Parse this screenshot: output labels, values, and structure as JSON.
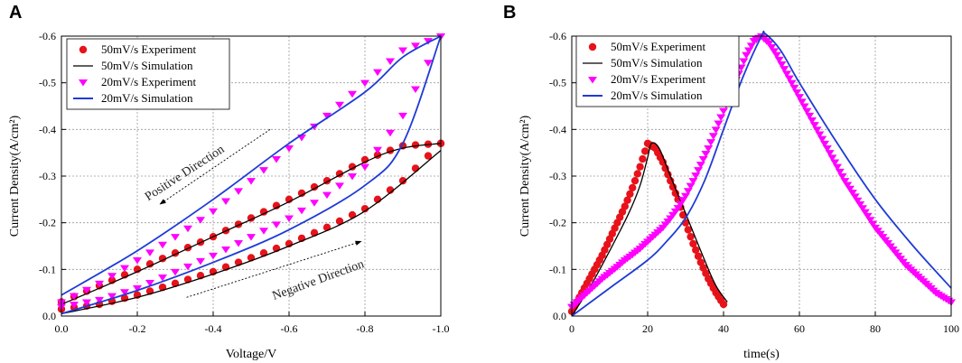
{
  "chart_data": [
    {
      "panel": "A",
      "type": "line",
      "xlabel": "Voltage/V",
      "ylabel": "Current Density(A/cm²)",
      "xlim": [
        0.0,
        -1.0
      ],
      "ylim": [
        0.0,
        -0.6
      ],
      "xticks": [
        0.0,
        -0.2,
        -0.4,
        -0.6,
        -0.8,
        -1.0
      ],
      "xtick_labels": [
        "0.0",
        "-0.2",
        "-0.4",
        "-0.6",
        "-0.8",
        "-1.0"
      ],
      "yticks": [
        0.0,
        -0.1,
        -0.2,
        -0.3,
        -0.4,
        -0.5,
        -0.6
      ],
      "ytick_labels": [
        "0.0",
        "-0.1",
        "-0.2",
        "-0.3",
        "-0.4",
        "-0.5",
        "-0.6"
      ],
      "grid": true,
      "legend_position": "top-left",
      "series": [
        {
          "name": "50mV/s Experiment",
          "style": "marker-circle",
          "color": "#e8121a",
          "x_upper": [
            0.0,
            -0.1,
            -0.2,
            -0.3,
            -0.4,
            -0.5,
            -0.6,
            -0.7,
            -0.8,
            -0.9,
            -1.0
          ],
          "y_upper": [
            -0.03,
            -0.065,
            -0.1,
            -0.135,
            -0.17,
            -0.21,
            -0.25,
            -0.29,
            -0.335,
            -0.365,
            -0.37
          ],
          "x_lower": [
            -1.0,
            -0.9,
            -0.8,
            -0.7,
            -0.6,
            -0.5,
            -0.4,
            -0.3,
            -0.2,
            -0.1,
            0.0
          ],
          "y_lower": [
            -0.37,
            -0.29,
            -0.23,
            -0.19,
            -0.155,
            -0.125,
            -0.095,
            -0.07,
            -0.045,
            -0.025,
            -0.015
          ]
        },
        {
          "name": "50mV/s Simulation",
          "style": "line",
          "color": "#000000",
          "x_upper": [
            0.0,
            -0.2,
            -0.4,
            -0.6,
            -0.8,
            -0.9,
            -1.0
          ],
          "y_upper": [
            -0.025,
            -0.095,
            -0.17,
            -0.245,
            -0.33,
            -0.36,
            -0.37
          ],
          "x_lower": [
            -1.0,
            -0.8,
            -0.6,
            -0.4,
            -0.2,
            0.0
          ],
          "y_lower": [
            -0.355,
            -0.225,
            -0.15,
            -0.09,
            -0.04,
            -0.005
          ]
        },
        {
          "name": "20mV/s Experiment",
          "style": "marker-triangle-down",
          "color": "#ff00ff",
          "x_upper": [
            0.0,
            -0.1,
            -0.2,
            -0.3,
            -0.4,
            -0.5,
            -0.6,
            -0.7,
            -0.8,
            -0.9,
            -1.0
          ],
          "y_upper": [
            -0.03,
            -0.07,
            -0.12,
            -0.17,
            -0.225,
            -0.29,
            -0.36,
            -0.43,
            -0.5,
            -0.57,
            -0.6
          ],
          "x_lower": [
            -1.0,
            -0.9,
            -0.8,
            -0.7,
            -0.6,
            -0.5,
            -0.4,
            -0.3,
            -0.2,
            -0.1,
            0.0
          ],
          "y_lower": [
            -0.6,
            -0.43,
            -0.32,
            -0.26,
            -0.21,
            -0.17,
            -0.13,
            -0.095,
            -0.06,
            -0.035,
            -0.02
          ]
        },
        {
          "name": "20mV/s Simulation",
          "style": "line",
          "color": "#1f3bd6",
          "x_upper": [
            0.0,
            -0.2,
            -0.4,
            -0.6,
            -0.8,
            -0.9,
            -1.0
          ],
          "y_upper": [
            -0.045,
            -0.14,
            -0.25,
            -0.37,
            -0.48,
            -0.555,
            -0.6
          ],
          "x_lower": [
            -1.0,
            -0.9,
            -0.8,
            -0.6,
            -0.4,
            -0.2,
            0.0
          ],
          "y_lower": [
            -0.6,
            -0.37,
            -0.28,
            -0.185,
            -0.115,
            -0.055,
            -0.005
          ]
        }
      ],
      "annotations": [
        {
          "text": "Positive Direction",
          "x": -0.33,
          "y": -0.3,
          "angle": -33
        },
        {
          "text": "Negative Direction",
          "x": -0.68,
          "y": -0.07,
          "angle": -20
        }
      ],
      "arrows": [
        {
          "from": [
            -0.55,
            -0.4
          ],
          "to": [
            -0.26,
            -0.24
          ]
        },
        {
          "from": [
            -0.33,
            -0.04
          ],
          "to": [
            -0.79,
            -0.16
          ]
        }
      ]
    },
    {
      "panel": "B",
      "type": "line",
      "xlabel": "time(s)",
      "ylabel": "Current Density(A/cm²)",
      "xlim": [
        0,
        100
      ],
      "ylim": [
        0.0,
        -0.6
      ],
      "xticks": [
        0,
        20,
        40,
        60,
        80,
        100
      ],
      "xtick_labels": [
        "0",
        "20",
        "40",
        "60",
        "80",
        "100"
      ],
      "yticks": [
        0.0,
        -0.1,
        -0.2,
        -0.3,
        -0.4,
        -0.5,
        -0.6
      ],
      "ytick_labels": [
        "0.0",
        "-0.1",
        "-0.2",
        "-0.3",
        "-0.4",
        "-0.5",
        "-0.6"
      ],
      "grid": true,
      "legend_position": "top-left",
      "series": [
        {
          "name": "50mV/s Experiment",
          "style": "marker-circle",
          "color": "#e8121a",
          "x": [
            0,
            2,
            4,
            6,
            8,
            10,
            12,
            14,
            16,
            18,
            20,
            22,
            24,
            26,
            28,
            30,
            32,
            34,
            36,
            38,
            40
          ],
          "y": [
            -0.01,
            -0.04,
            -0.07,
            -0.1,
            -0.13,
            -0.165,
            -0.2,
            -0.235,
            -0.275,
            -0.32,
            -0.37,
            -0.36,
            -0.33,
            -0.29,
            -0.25,
            -0.2,
            -0.155,
            -0.115,
            -0.08,
            -0.05,
            -0.025
          ]
        },
        {
          "name": "50mV/s Simulation",
          "style": "line",
          "color": "#000000",
          "x": [
            0,
            5,
            10,
            15,
            18,
            20,
            21,
            23,
            26,
            30,
            35,
            38,
            41
          ],
          "y": [
            0.0,
            -0.065,
            -0.14,
            -0.22,
            -0.28,
            -0.34,
            -0.37,
            -0.36,
            -0.3,
            -0.22,
            -0.12,
            -0.065,
            -0.03
          ]
        },
        {
          "name": "20mV/s Experiment",
          "style": "marker-triangle-down",
          "color": "#ff00ff",
          "x": [
            0,
            2,
            4,
            6,
            8,
            10,
            12,
            14,
            16,
            18,
            20,
            22,
            24,
            26,
            28,
            30,
            32,
            34,
            36,
            38,
            40,
            42,
            44,
            46,
            48,
            50,
            52,
            54,
            56,
            58,
            60,
            62,
            64,
            66,
            68,
            70,
            72,
            74,
            76,
            78,
            80,
            82,
            84,
            86,
            88,
            90,
            92,
            94,
            96,
            98,
            100
          ],
          "y": [
            -0.02,
            -0.035,
            -0.05,
            -0.065,
            -0.08,
            -0.093,
            -0.106,
            -0.12,
            -0.132,
            -0.145,
            -0.16,
            -0.175,
            -0.19,
            -0.21,
            -0.232,
            -0.258,
            -0.29,
            -0.325,
            -0.36,
            -0.4,
            -0.44,
            -0.48,
            -0.52,
            -0.56,
            -0.59,
            -0.6,
            -0.585,
            -0.56,
            -0.53,
            -0.5,
            -0.47,
            -0.44,
            -0.41,
            -0.38,
            -0.35,
            -0.32,
            -0.29,
            -0.265,
            -0.24,
            -0.215,
            -0.19,
            -0.17,
            -0.15,
            -0.13,
            -0.11,
            -0.095,
            -0.08,
            -0.065,
            -0.05,
            -0.04,
            -0.03
          ]
        },
        {
          "name": "20mV/s Simulation",
          "style": "line",
          "color": "#1f3bd6",
          "x": [
            0,
            10,
            20,
            25,
            30,
            35,
            40,
            45,
            50,
            51,
            55,
            60,
            70,
            80,
            90,
            100
          ],
          "y": [
            0.0,
            -0.06,
            -0.12,
            -0.16,
            -0.21,
            -0.29,
            -0.4,
            -0.51,
            -0.6,
            -0.605,
            -0.57,
            -0.5,
            -0.37,
            -0.25,
            -0.15,
            -0.06
          ]
        }
      ]
    }
  ]
}
